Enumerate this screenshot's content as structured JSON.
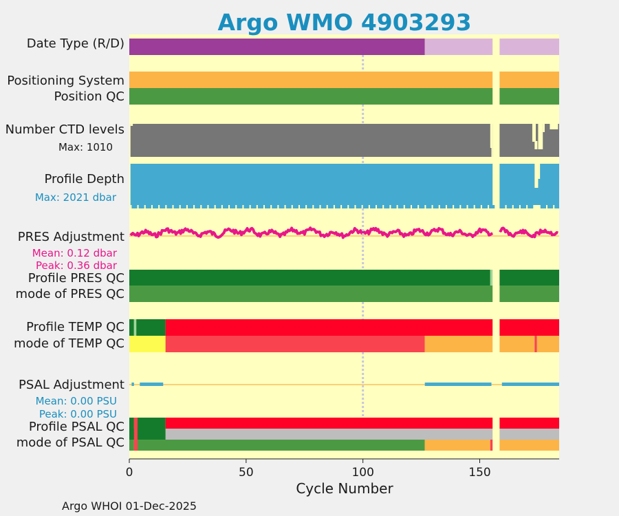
{
  "chart_data": {
    "type": "status-bar-timeline",
    "title": "Argo WMO 4903293",
    "xlabel": "Cycle Number",
    "xlim": [
      0,
      184
    ],
    "xticks": [
      0,
      50,
      100,
      150
    ],
    "gap": [
      155.5,
      158.5
    ],
    "dotted_marker_cycle": 100,
    "footer": "Argo WHOI 01-Dec-2025",
    "rows": {
      "date_type": {
        "label": "Date Type (R/D)",
        "segments": [
          {
            "from": 0,
            "to": 126.5,
            "value": "R"
          },
          {
            "from": 126.5,
            "to": 184,
            "value": "D"
          }
        ]
      },
      "positioning_system": {
        "label": "Positioning System",
        "segments": [
          {
            "from": 0,
            "to": 184,
            "value": "GPS"
          }
        ]
      },
      "position_qc": {
        "label": "Position QC",
        "segments": [
          {
            "from": 0,
            "to": 184,
            "value": "1"
          }
        ]
      },
      "ctd_levels": {
        "label": "Number CTD levels",
        "max_label": "Max: 1010",
        "max": 1010,
        "typical": 1000
      },
      "profile_depth": {
        "label": "Profile Depth",
        "max_label": "Max: 2021 dbar",
        "max": 2021,
        "typical": 2000
      },
      "pres_adjustment": {
        "label": "PRES Adjustment",
        "mean_label": "Mean: 0.12 dbar",
        "peak_label": "Peak: 0.36 dbar",
        "mean": 0.12,
        "peak": 0.36
      },
      "profile_pres_qc": {
        "label": "Profile PRES QC",
        "segments": [
          {
            "from": 0,
            "to": 154.5,
            "value": "A"
          },
          {
            "from": 154.5,
            "to": 155.5,
            "value": "B"
          },
          {
            "from": 158.5,
            "to": 184,
            "value": "A"
          }
        ]
      },
      "mode_pres_qc": {
        "label": "mode of PRES QC",
        "segments": [
          {
            "from": 0,
            "to": 184,
            "value": "1"
          }
        ]
      },
      "profile_temp_qc": {
        "label": "Profile TEMP QC",
        "segments": [
          {
            "from": 0,
            "to": 2,
            "value": "A"
          },
          {
            "from": 2,
            "to": 3,
            "value": "B"
          },
          {
            "from": 3,
            "to": 15.5,
            "value": "A"
          },
          {
            "from": 15.5,
            "to": 184,
            "value": "F"
          }
        ]
      },
      "mode_temp_qc": {
        "label": "mode of TEMP QC",
        "segments": [
          {
            "from": 0,
            "to": 15.5,
            "value": "2"
          },
          {
            "from": 15.5,
            "to": 126.5,
            "value": "4"
          },
          {
            "from": 126.5,
            "to": 173.5,
            "value": "3"
          },
          {
            "from": 173.5,
            "to": 174.5,
            "value": "4"
          },
          {
            "from": 174.5,
            "to": 184,
            "value": "3"
          }
        ]
      },
      "psal_adjustment": {
        "label": "PSAL Adjustment",
        "mean_label": "Mean: 0.00 PSU",
        "peak_label": "Peak: 0.00 PSU",
        "mean": 0.0,
        "peak": 0.0
      },
      "profile_psal_qc": {
        "label": "Profile PSAL QC",
        "segments": [
          {
            "from": 0,
            "to": 2,
            "value": "A"
          },
          {
            "from": 2,
            "to": 3.5,
            "value": "F"
          },
          {
            "from": 3.5,
            "to": 15.5,
            "value": "A"
          },
          {
            "from": 15.5,
            "to": 184,
            "value": "F"
          }
        ]
      },
      "mode_psal_qc": {
        "label": "mode of PSAL QC",
        "segments": [
          {
            "from": 0,
            "to": 2,
            "value": "1"
          },
          {
            "from": 2,
            "to": 3.5,
            "value": "4"
          },
          {
            "from": 3.5,
            "to": 126.5,
            "value": "1"
          },
          {
            "from": 126.5,
            "to": 154.5,
            "value": "3"
          },
          {
            "from": 154.5,
            "to": 155.5,
            "value": "4"
          },
          {
            "from": 158.5,
            "to": 184,
            "value": "3"
          }
        ]
      }
    },
    "colors": {
      "background": "#ffffc0",
      "title": "#1a8fbf",
      "R": "#9b3d99",
      "D": "#dbb5d9",
      "GPS": "#fcb447",
      "qc1": "#4b9a43",
      "qc2": "#fdfb50",
      "qc3": "#fcb447",
      "qc4": "#f9434f",
      "A": "#157b2c",
      "B": "#9ed69a",
      "F": "#ff0027",
      "grey": "#767676",
      "light_grey": "#bdbdbd",
      "depth": "#45aacf",
      "pres_adj": "#e8168a",
      "pres_label": "#e8168a",
      "psal_adj": "#45aacf",
      "psal_label": "#1a8fbf",
      "ref_line": "#fcb447"
    }
  }
}
